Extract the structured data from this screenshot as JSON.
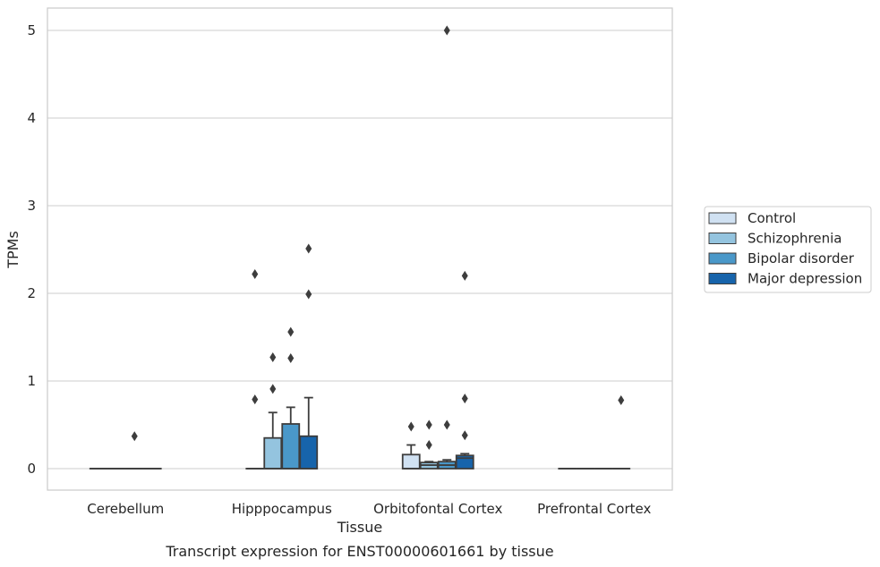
{
  "chart_data": {
    "type": "box",
    "xlabel": "Tissue",
    "ylabel": "TPMs",
    "caption": "Transcript expression for ENST00000601661 by tissue",
    "ylim": [
      -0.25,
      5.25
    ],
    "yticks": [
      0,
      1,
      2,
      3,
      4,
      5
    ],
    "grid": "horizontal",
    "legend_position": "right",
    "categories": [
      "Cerebellum",
      "Hipppocampus",
      "Orbitofontal Cortex",
      "Prefrontal Cortex"
    ],
    "series": [
      {
        "name": "Control",
        "color": "#d0e1f2",
        "boxes": [
          {
            "q1": 0,
            "median": 0,
            "q3": 0,
            "whisker_low": 0,
            "whisker_high": 0,
            "outliers": []
          },
          {
            "q1": 0,
            "median": 0,
            "q3": 0,
            "whisker_low": 0,
            "whisker_high": 0,
            "outliers": [
              0.79,
              2.22
            ]
          },
          {
            "q1": 0,
            "median": 0,
            "q3": 0.16,
            "whisker_low": 0,
            "whisker_high": 0.27,
            "outliers": [
              0.48
            ]
          },
          {
            "q1": 0,
            "median": 0,
            "q3": 0,
            "whisker_low": 0,
            "whisker_high": 0,
            "outliers": []
          }
        ]
      },
      {
        "name": "Schizophrenia",
        "color": "#94c4df",
        "boxes": [
          {
            "q1": 0,
            "median": 0,
            "q3": 0,
            "whisker_low": 0,
            "whisker_high": 0,
            "outliers": []
          },
          {
            "q1": 0,
            "median": 0,
            "q3": 0.35,
            "whisker_low": 0,
            "whisker_high": 0.64,
            "outliers": [
              0.91,
              1.27
            ]
          },
          {
            "q1": 0,
            "median": 0.04,
            "q3": 0.07,
            "whisker_low": 0,
            "whisker_high": 0.08,
            "outliers": [
              0.27,
              0.5
            ]
          },
          {
            "q1": 0,
            "median": 0,
            "q3": 0,
            "whisker_low": 0,
            "whisker_high": 0,
            "outliers": []
          }
        ]
      },
      {
        "name": "Bipolar disorder",
        "color": "#4a98c9",
        "boxes": [
          {
            "q1": 0,
            "median": 0,
            "q3": 0,
            "whisker_low": 0,
            "whisker_high": 0,
            "outliers": [
              0.37
            ]
          },
          {
            "q1": 0,
            "median": 0,
            "q3": 0.51,
            "whisker_low": 0,
            "whisker_high": 0.7,
            "outliers": [
              1.26,
              1.56
            ]
          },
          {
            "q1": 0,
            "median": 0.04,
            "q3": 0.08,
            "whisker_low": 0,
            "whisker_high": 0.1,
            "outliers": [
              0.5,
              5.0
            ]
          },
          {
            "q1": 0,
            "median": 0,
            "q3": 0,
            "whisker_low": 0,
            "whisker_high": 0,
            "outliers": []
          }
        ]
      },
      {
        "name": "Major depression",
        "color": "#1764ab",
        "boxes": [
          {
            "q1": 0,
            "median": 0,
            "q3": 0,
            "whisker_low": 0,
            "whisker_high": 0,
            "outliers": []
          },
          {
            "q1": 0,
            "median": 0,
            "q3": 0.37,
            "whisker_low": 0,
            "whisker_high": 0.81,
            "outliers": [
              1.99,
              2.51
            ]
          },
          {
            "q1": 0,
            "median": 0.12,
            "q3": 0.15,
            "whisker_low": 0,
            "whisker_high": 0.17,
            "outliers": [
              0.38,
              0.8,
              2.2
            ]
          },
          {
            "q1": 0,
            "median": 0,
            "q3": 0,
            "whisker_low": 0,
            "whisker_high": 0,
            "outliers": [
              0.78
            ]
          }
        ]
      }
    ]
  }
}
